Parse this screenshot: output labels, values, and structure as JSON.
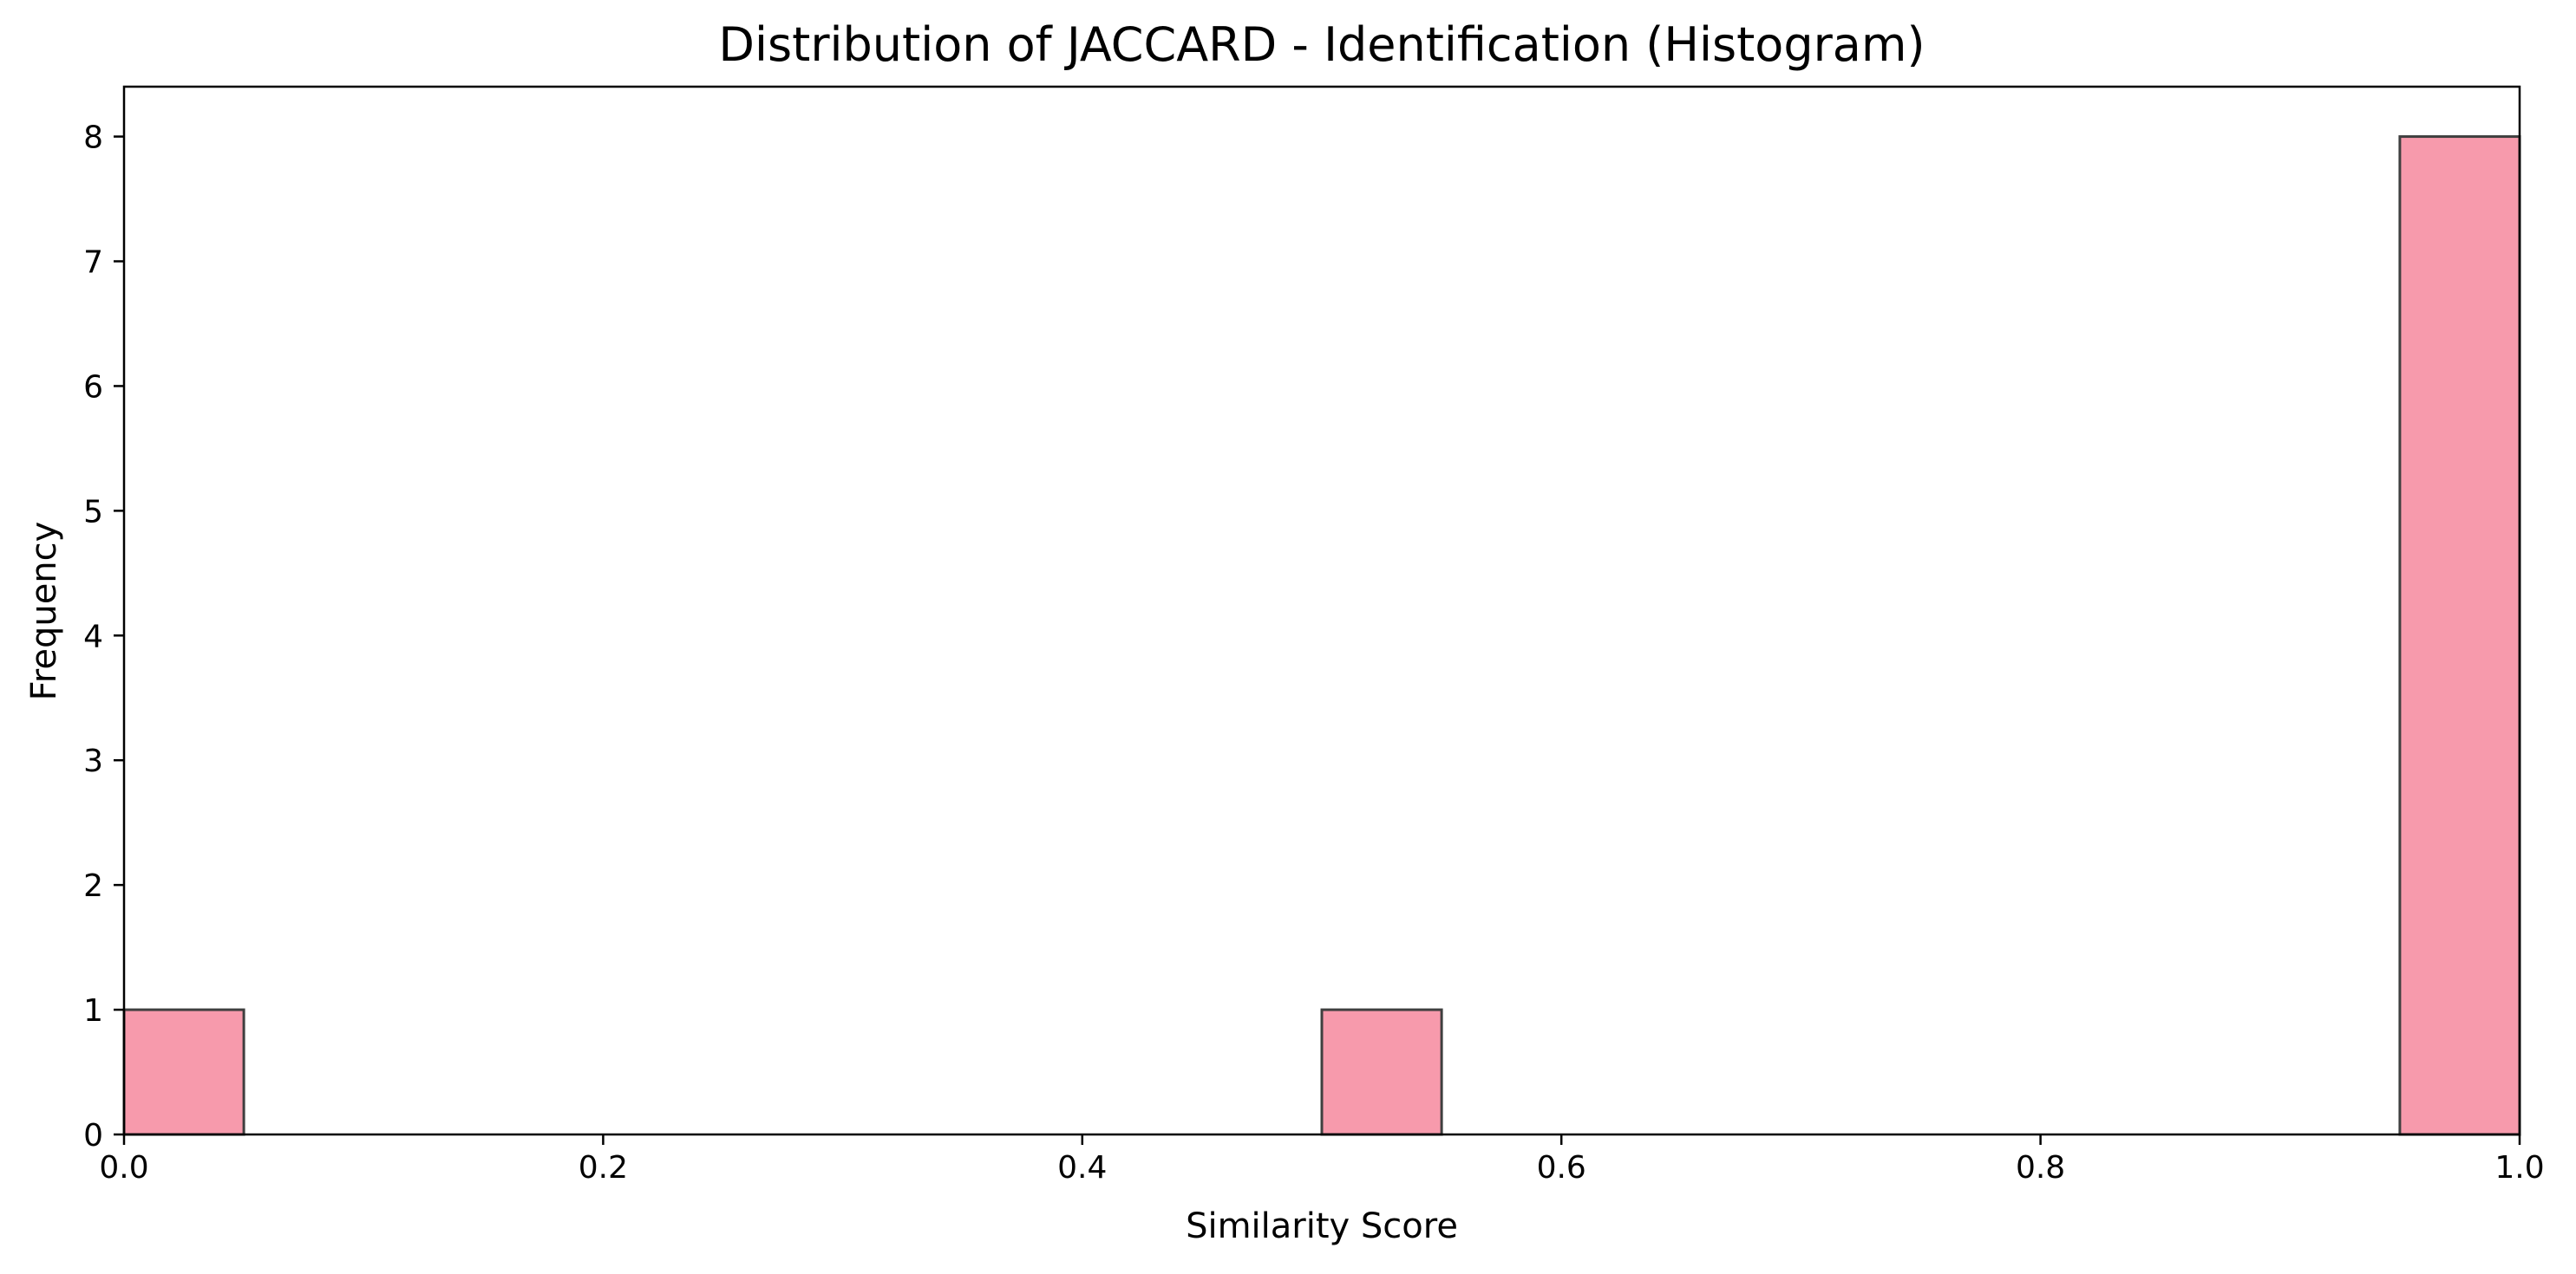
{
  "chart_data": {
    "type": "bar",
    "title": "Distribution of JACCARD - Identification (Histogram)",
    "xlabel": "Similarity Score",
    "ylabel": "Frequency",
    "xlim": [
      0.0,
      1.0
    ],
    "ylim": [
      0,
      8.4
    ],
    "xticks": [
      "0.0",
      "0.2",
      "0.4",
      "0.6",
      "0.8",
      "1.0"
    ],
    "yticks": [
      "0",
      "1",
      "2",
      "3",
      "4",
      "5",
      "6",
      "7",
      "8"
    ],
    "bin_width": 0.05,
    "bins": [
      {
        "x0": 0.0,
        "x1": 0.05,
        "count": 1
      },
      {
        "x0": 0.5,
        "x1": 0.55,
        "count": 1
      },
      {
        "x0": 0.95,
        "x1": 1.0,
        "count": 8
      }
    ],
    "grid": false,
    "legend": "none",
    "bar_color": "#f79aac",
    "edge_color": "#3f3f3f"
  }
}
